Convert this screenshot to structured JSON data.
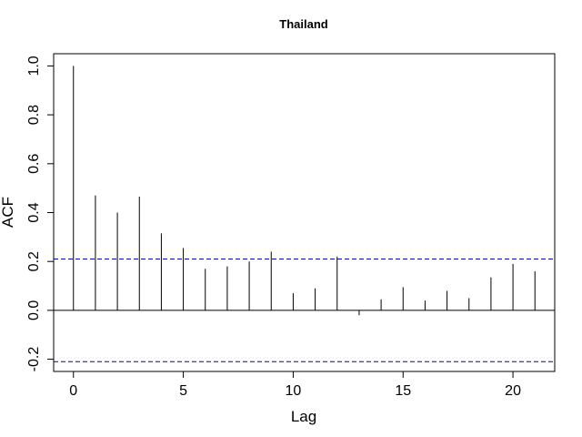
{
  "chart_data": {
    "type": "bar",
    "title": "Thailand",
    "xlabel": "Lag",
    "ylabel": "ACF",
    "xlim": [
      -0.9,
      21.9
    ],
    "ylim": [
      -0.25,
      1.05
    ],
    "x_ticks": [
      0,
      5,
      10,
      15,
      20
    ],
    "y_ticks": [
      -0.2,
      0.0,
      0.2,
      0.4,
      0.6,
      0.8,
      1.0
    ],
    "y_tick_labels": [
      "-0.2",
      "0.0",
      "0.2",
      "0.4",
      "0.6",
      "0.8",
      "1.0"
    ],
    "x": [
      0,
      1,
      2,
      3,
      4,
      5,
      6,
      7,
      8,
      9,
      10,
      11,
      12,
      13,
      14,
      15,
      16,
      17,
      18,
      19,
      20,
      21
    ],
    "values": [
      1.0,
      0.47,
      0.4,
      0.465,
      0.315,
      0.255,
      0.17,
      0.18,
      0.2,
      0.24,
      0.07,
      0.09,
      0.22,
      -0.02,
      0.045,
      0.095,
      0.04,
      0.08,
      0.05,
      0.135,
      0.19,
      0.16
    ],
    "confidence_bound": 0.21,
    "grid": false,
    "colors": {
      "bars": "#000000",
      "bounds": "#0000cc",
      "zero_line": "#000000"
    }
  }
}
